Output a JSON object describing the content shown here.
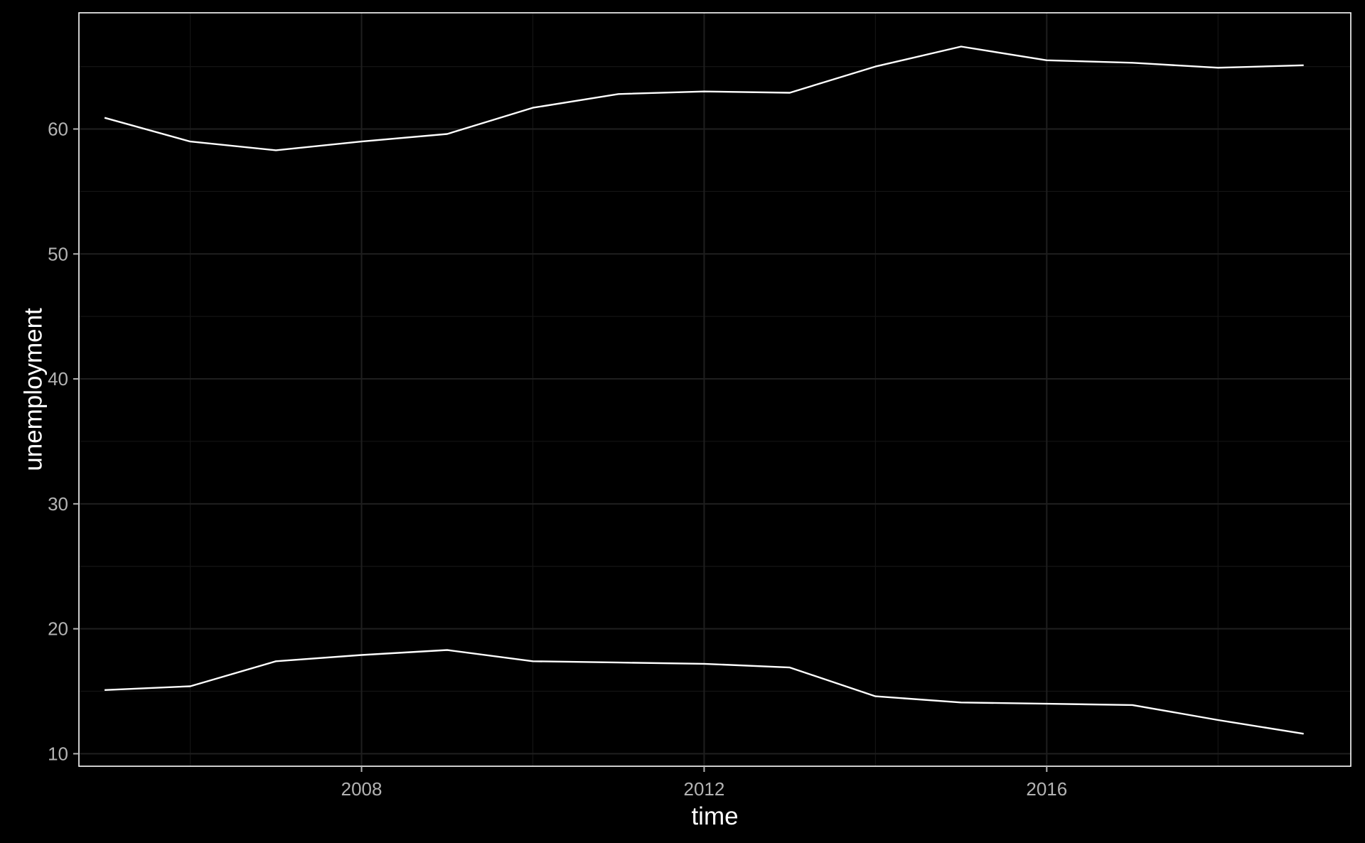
{
  "chart_data": {
    "type": "line",
    "xlabel": "time",
    "ylabel": "unemployment",
    "xlim": [
      2004.7,
      2019.55
    ],
    "ylim": [
      9.0,
      69.3
    ],
    "x_ticks": [
      2008,
      2012,
      2016
    ],
    "x_minor_ticks": [
      2006,
      2010,
      2014,
      2018
    ],
    "y_ticks": [
      10,
      20,
      30,
      40,
      50,
      60
    ],
    "y_minor_ticks": [
      15,
      25,
      35,
      45,
      55,
      65
    ],
    "grid": true,
    "legend": "none",
    "line_color": "#ffffff",
    "background_color": "#000000",
    "series": [
      {
        "x": [
          2005,
          2006,
          2007,
          2008,
          2009,
          2010,
          2011,
          2012,
          2013,
          2014,
          2015,
          2016,
          2017,
          2018,
          2019
        ],
        "values": [
          60.9,
          59.0,
          58.3,
          59.0,
          59.6,
          61.7,
          62.8,
          63.0,
          62.9,
          65.0,
          66.6,
          65.5,
          65.3,
          64.9,
          65.1
        ]
      },
      {
        "x": [
          2005,
          2006,
          2007,
          2008,
          2009,
          2010,
          2011,
          2012,
          2013,
          2014,
          2015,
          2016,
          2017,
          2018,
          2019
        ],
        "values": [
          15.1,
          15.4,
          17.4,
          17.9,
          18.3,
          17.4,
          17.3,
          17.2,
          16.9,
          14.6,
          14.1,
          14.0,
          13.9,
          12.7,
          11.6
        ]
      }
    ]
  }
}
